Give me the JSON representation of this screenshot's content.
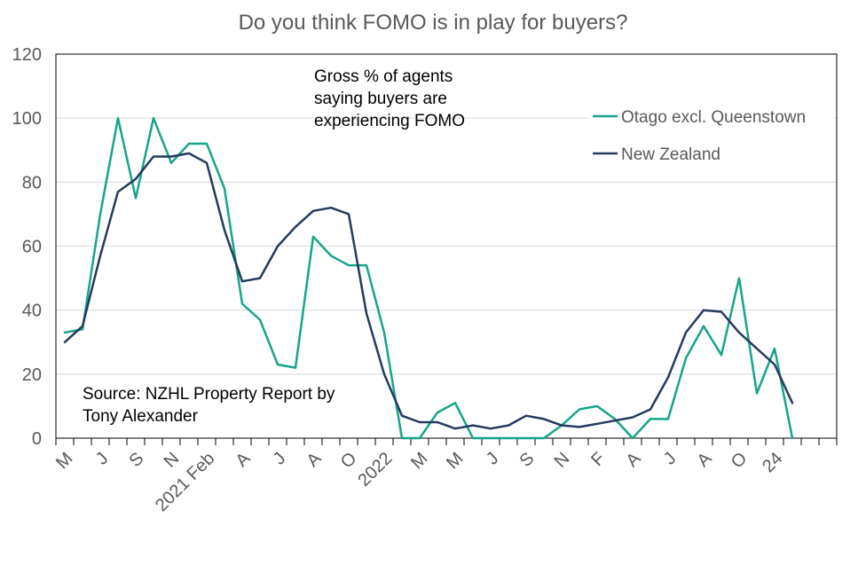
{
  "chart_data": {
    "type": "line",
    "title": "Do you think FOMO is in play for buyers?",
    "xlabel": "",
    "ylabel": "",
    "ylim": [
      0,
      120
    ],
    "yticks": [
      0,
      20,
      40,
      60,
      80,
      100,
      120
    ],
    "grid": true,
    "legend_position": "top-right",
    "x_count": 44,
    "x_tick_labels": [
      {
        "index": 0,
        "label": "M"
      },
      {
        "index": 2,
        "label": "J"
      },
      {
        "index": 4,
        "label": "S"
      },
      {
        "index": 6,
        "label": "N"
      },
      {
        "index": 8,
        "label": "2021 Feb"
      },
      {
        "index": 10,
        "label": "A"
      },
      {
        "index": 12,
        "label": "J"
      },
      {
        "index": 14,
        "label": "A"
      },
      {
        "index": 16,
        "label": "O"
      },
      {
        "index": 18,
        "label": "2022"
      },
      {
        "index": 20,
        "label": "M"
      },
      {
        "index": 22,
        "label": "M"
      },
      {
        "index": 24,
        "label": "J"
      },
      {
        "index": 26,
        "label": "S"
      },
      {
        "index": 28,
        "label": "N"
      },
      {
        "index": 30,
        "label": "F"
      },
      {
        "index": 32,
        "label": "A"
      },
      {
        "index": 34,
        "label": "J"
      },
      {
        "index": 36,
        "label": "A"
      },
      {
        "index": 38,
        "label": "O"
      },
      {
        "index": 40,
        "label": "24"
      }
    ],
    "series": [
      {
        "name": "Otago excl. Queenstown",
        "color": "#17a589",
        "values": [
          33,
          34,
          70,
          100,
          75,
          100,
          86,
          92,
          92,
          78,
          42,
          37,
          23,
          22,
          63,
          57,
          54,
          54,
          33,
          0,
          0,
          8,
          11,
          0,
          0,
          0,
          0,
          0,
          4,
          9,
          10,
          6,
          0,
          6,
          6,
          25,
          35,
          26,
          50,
          14,
          28,
          0
        ]
      },
      {
        "name": "New Zealand",
        "color": "#243a5e",
        "values": [
          30,
          35,
          57,
          77,
          81,
          88,
          88,
          89,
          86,
          65,
          49,
          50,
          60,
          66,
          71,
          72,
          70,
          39,
          20,
          7,
          5,
          5,
          3,
          4,
          3,
          4,
          7,
          6,
          4,
          3.5,
          4.5,
          5.5,
          6.5,
          9,
          19,
          33,
          40,
          39.5,
          33,
          28,
          23,
          11
        ]
      }
    ],
    "annotations": {
      "subtitle_lines": [
        "Gross % of agents",
        "saying buyers are",
        "experiencing FOMO"
      ],
      "source_lines": [
        "Source: NZHL Property Report by",
        "Tony Alexander"
      ]
    }
  }
}
